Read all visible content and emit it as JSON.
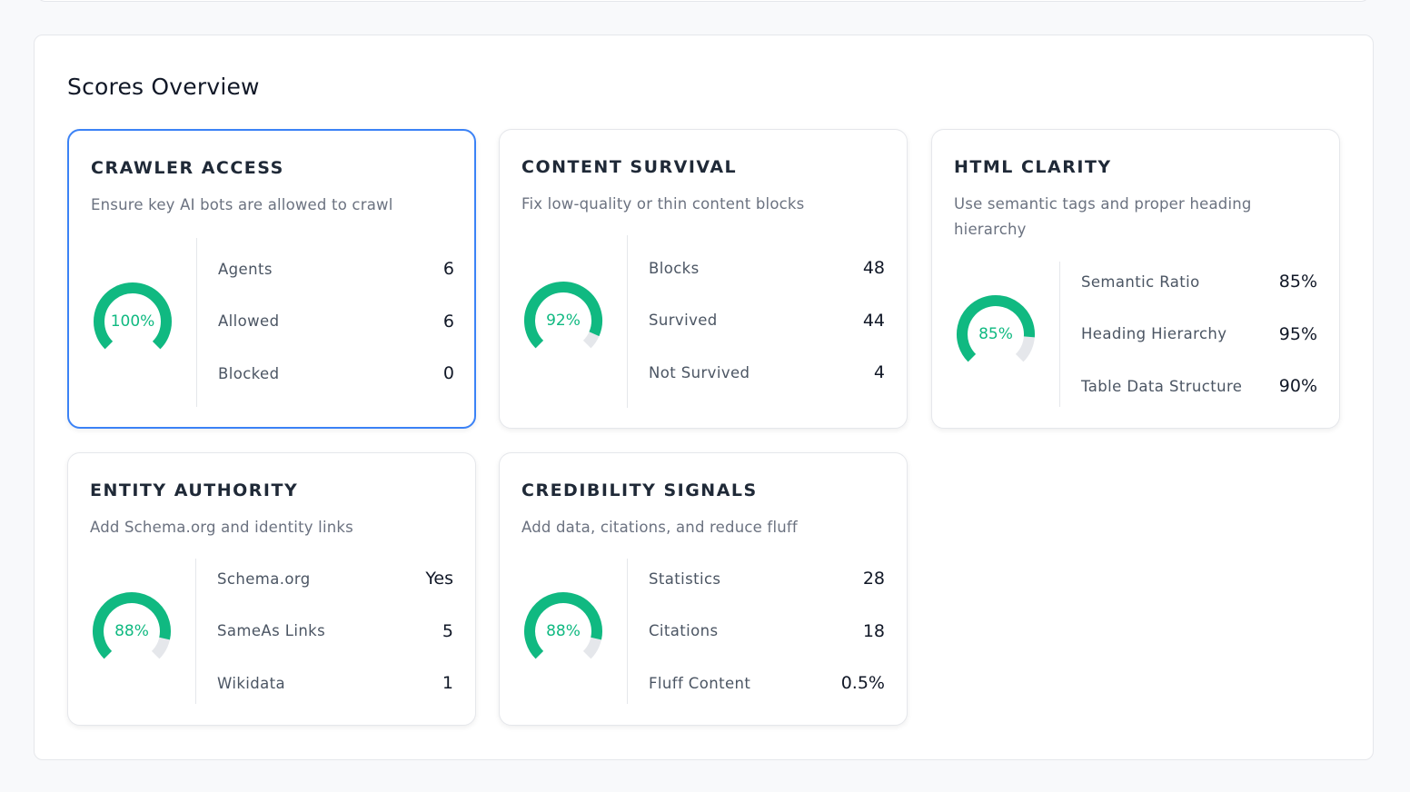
{
  "panel": {
    "title": "Scores Overview"
  },
  "colors": {
    "accent": "#10b981",
    "track": "#e5e7eb",
    "selected_border": "#3b82f6"
  },
  "cards": [
    {
      "title": "CRAWLER ACCESS",
      "description": "Ensure key AI bots are allowed to crawl",
      "score": 100,
      "score_label": "100%",
      "selected": true,
      "stats": [
        {
          "label": "Agents",
          "value": "6"
        },
        {
          "label": "Allowed",
          "value": "6"
        },
        {
          "label": "Blocked",
          "value": "0"
        }
      ]
    },
    {
      "title": "CONTENT SURVIVAL",
      "description": "Fix low-quality or thin content blocks",
      "score": 92,
      "score_label": "92%",
      "stats": [
        {
          "label": "Blocks",
          "value": "48"
        },
        {
          "label": "Survived",
          "value": "44"
        },
        {
          "label": "Not Survived",
          "value": "4"
        }
      ]
    },
    {
      "title": "HTML CLARITY",
      "description": "Use semantic tags and proper heading hierarchy",
      "score": 85,
      "score_label": "85%",
      "stats": [
        {
          "label": "Semantic Ratio",
          "value": "85%"
        },
        {
          "label": "Heading Hierarchy",
          "value": "95%"
        },
        {
          "label": "Table Data Structure",
          "value": "90%"
        }
      ]
    },
    {
      "title": "ENTITY AUTHORITY",
      "description": "Add Schema.org and identity links",
      "score": 88,
      "score_label": "88%",
      "stats": [
        {
          "label": "Schema.org",
          "value": "Yes"
        },
        {
          "label": "SameAs Links",
          "value": "5"
        },
        {
          "label": "Wikidata",
          "value": "1"
        }
      ]
    },
    {
      "title": "CREDIBILITY SIGNALS",
      "description": "Add data, citations, and reduce fluff",
      "score": 88,
      "score_label": "88%",
      "stats": [
        {
          "label": "Statistics",
          "value": "28"
        },
        {
          "label": "Citations",
          "value": "18"
        },
        {
          "label": "Fluff Content",
          "value": "0.5%"
        }
      ]
    }
  ]
}
